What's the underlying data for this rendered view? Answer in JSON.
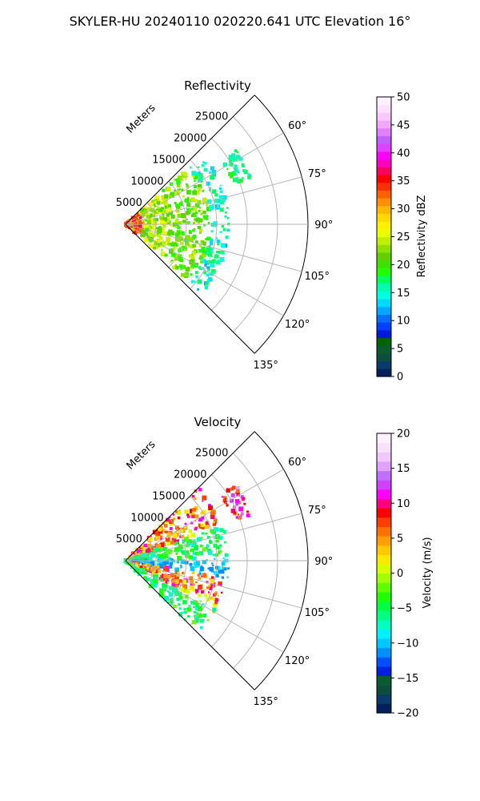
{
  "figure": {
    "title": "SKYLER-HU  20240110  020220.641 UTC Elevation 16°"
  },
  "colors": {
    "reflectivity_scale": [
      "#04205c",
      "#0b3a6e",
      "#0d4d3b",
      "#0c5a30",
      "#006400",
      "#0018d8",
      "#0040ff",
      "#0070ff",
      "#00a8ff",
      "#00d8ff",
      "#00ffe0",
      "#00ffb0",
      "#00ff60",
      "#20ff00",
      "#40e000",
      "#60d000",
      "#90e000",
      "#c0f000",
      "#e8ff00",
      "#fff000",
      "#ffd800",
      "#ffb800",
      "#ff9000",
      "#ff6000",
      "#ff3000",
      "#ff0000",
      "#ff0060",
      "#ff00c0",
      "#ff00ff",
      "#e040ff",
      "#c060ff",
      "#e080ff",
      "#f0a8ff",
      "#f8c8ff",
      "#fce0ff",
      "#fff0ff"
    ],
    "velocity_scale": [
      "#04205c",
      "#0b3a6e",
      "#0d4d3b",
      "#0c5a30",
      "#0020e0",
      "#0050ff",
      "#0090ff",
      "#00c8ff",
      "#00f0ff",
      "#00ffc0",
      "#00ff80",
      "#00ff40",
      "#20ff00",
      "#60ff00",
      "#a0ff00",
      "#d8ff00",
      "#ffe800",
      "#ffc800",
      "#ffa000",
      "#ff7000",
      "#ff4000",
      "#ff0000",
      "#ff0080",
      "#ff00ff",
      "#d040ff",
      "#c070ff",
      "#e0a0ff",
      "#f0c8ff",
      "#f8e0ff",
      "#fff0ff"
    ]
  },
  "chart_data": [
    {
      "type": "heatmap",
      "title": "Reflectivity",
      "radial_label": "Meters",
      "r_ticks": [
        5000,
        10000,
        15000,
        20000,
        25000
      ],
      "r_tick_labels": [
        "5000",
        "10000",
        "15000",
        "20000",
        "25000"
      ],
      "theta_ticks_deg": [
        60,
        75,
        90,
        105,
        120,
        135
      ],
      "theta_tick_labels": [
        "60°",
        "75°",
        "90°",
        "105°",
        "120°",
        "135°"
      ],
      "theta_range_deg": [
        45,
        135
      ],
      "r_range": [
        0,
        30000
      ],
      "grid": true,
      "colorbar": {
        "label": "Reflectivity dBZ",
        "range": [
          0,
          50
        ],
        "ticks": [
          0,
          5,
          10,
          15,
          20,
          25,
          30,
          35,
          40,
          45,
          50
        ],
        "tick_labels": [
          "0",
          "5",
          "10",
          "15",
          "20",
          "25",
          "30",
          "35",
          "40",
          "45",
          "50"
        ]
      },
      "echo_bands": [
        {
          "r_range": [
            0,
            3000
          ],
          "value_range": [
            30,
            37
          ]
        },
        {
          "r_range": [
            3000,
            8000
          ],
          "value_range": [
            20,
            27
          ]
        },
        {
          "r_range": [
            8000,
            14000
          ],
          "value_range": [
            18,
            25
          ]
        },
        {
          "r_range": [
            14000,
            17000
          ],
          "value_range": [
            12,
            18
          ]
        },
        {
          "r_range": [
            19000,
            22000
          ],
          "azimuth_deg": [
            55,
            70
          ],
          "value_range": [
            15,
            19
          ]
        }
      ]
    },
    {
      "type": "heatmap",
      "title": "Velocity",
      "radial_label": "Meters",
      "r_ticks": [
        5000,
        10000,
        15000,
        20000,
        25000
      ],
      "r_tick_labels": [
        "5000",
        "10000",
        "15000",
        "20000",
        "25000"
      ],
      "theta_ticks_deg": [
        60,
        75,
        90,
        105,
        120,
        135
      ],
      "theta_tick_labels": [
        "60°",
        "75°",
        "90°",
        "105°",
        "120°",
        "135°"
      ],
      "theta_range_deg": [
        45,
        135
      ],
      "r_range": [
        0,
        30000
      ],
      "grid": true,
      "colorbar": {
        "label": "Velocity (m/s)",
        "range": [
          -20,
          20
        ],
        "ticks": [
          -20,
          -15,
          -10,
          -5,
          0,
          5,
          10,
          15,
          20
        ],
        "tick_labels": [
          "−20",
          "−15",
          "−10",
          "−5",
          "0",
          "5",
          "10",
          "15",
          "20"
        ]
      },
      "echo_bands": [
        {
          "azimuth_deg": [
            45,
            70
          ],
          "value_range": [
            0,
            12
          ]
        },
        {
          "azimuth_deg": [
            70,
            88
          ],
          "value_range": [
            -8,
            -2
          ]
        },
        {
          "azimuth_deg": [
            88,
            100
          ],
          "value_range": [
            -12,
            -8
          ]
        },
        {
          "azimuth_deg": [
            100,
            118
          ],
          "value_range": [
            0,
            12
          ]
        },
        {
          "azimuth_deg": [
            118,
            135
          ],
          "value_range": [
            -8,
            -2
          ]
        },
        {
          "r_range": [
            19000,
            22000
          ],
          "azimuth_deg": [
            55,
            70
          ],
          "value_range": [
            5,
            15
          ]
        }
      ]
    }
  ]
}
